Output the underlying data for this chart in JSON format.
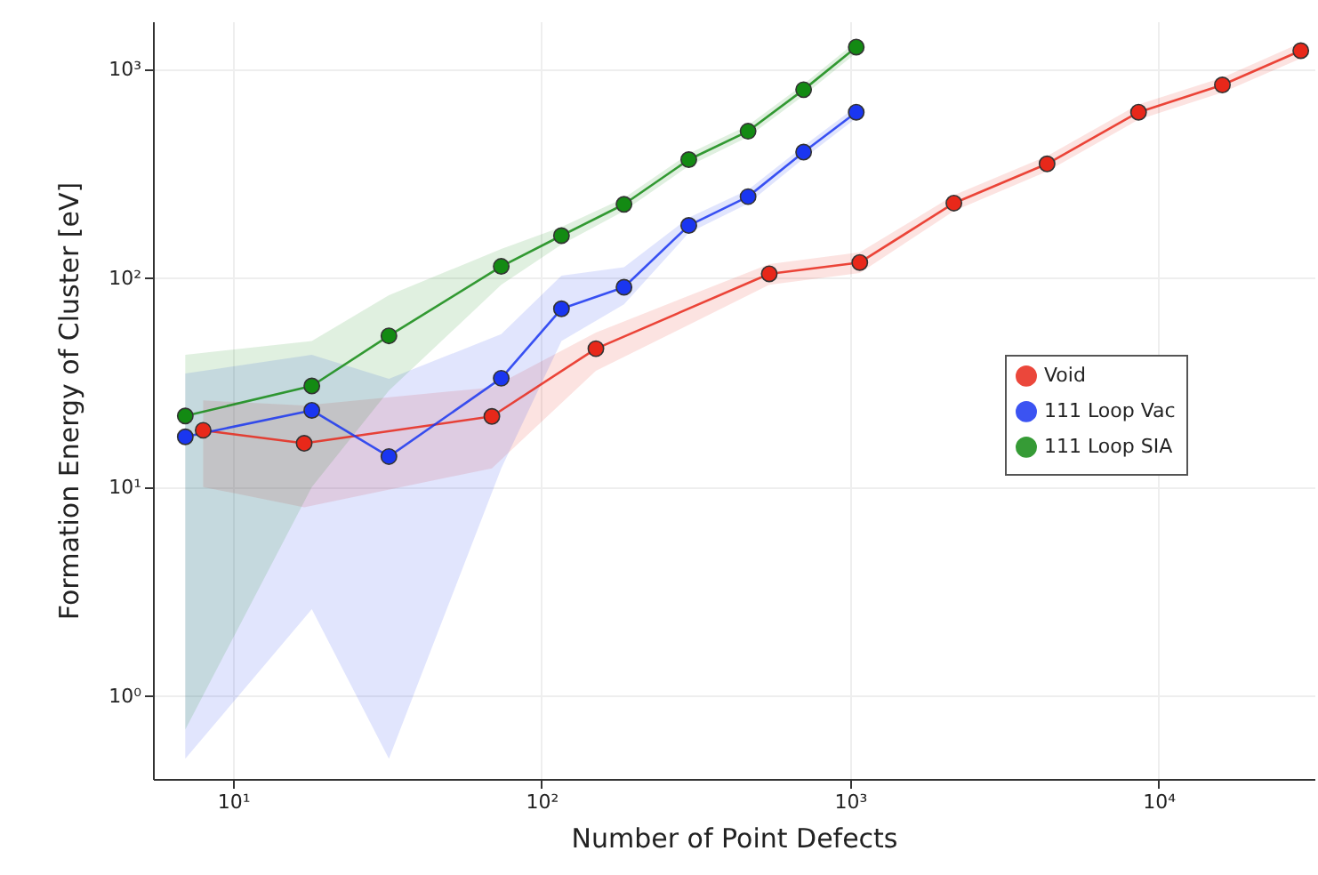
{
  "chart_data": {
    "type": "line",
    "xlabel": "Number of Point Defects",
    "ylabel": "Formation Energy of Cluster [eV]",
    "log": "xy",
    "grid": true,
    "legend": "right",
    "marker": "circle",
    "line_style": "solid",
    "xlim": [
      5.5,
      32000
    ],
    "ylim": [
      0.4,
      1700
    ],
    "xticks": [
      {
        "value": 10,
        "label": "10¹"
      },
      {
        "value": 100,
        "label": "10²"
      },
      {
        "value": 1000,
        "label": "10³"
      },
      {
        "value": 10000,
        "label": "10⁴"
      }
    ],
    "yticks": [
      {
        "value": 1,
        "label": "10⁰"
      },
      {
        "value": 10,
        "label": "10¹"
      },
      {
        "value": 100,
        "label": "10²"
      },
      {
        "value": 1000,
        "label": "10³"
      }
    ],
    "series": [
      {
        "name": "Void",
        "color": "#e8281a",
        "x": [
          8,
          17,
          69,
          150,
          547,
          1075,
          2170,
          4350,
          8610,
          16100,
          28900
        ],
        "values": [
          18.7,
          16.2,
          21.8,
          46,
          105,
          119,
          229,
          353,
          624,
          843,
          1230
        ],
        "lower": [
          10,
          8,
          12.3,
          36,
          93,
          106,
          210,
          325,
          575,
          775,
          1130
        ],
        "upper": [
          26,
          24.6,
          30,
          55,
          117,
          133,
          250,
          385,
          680,
          915,
          1340
        ]
      },
      {
        "name": "111 Loop Vac",
        "color": "#1a36f0",
        "x": [
          7,
          18,
          32,
          74,
          116,
          185,
          300,
          467,
          707,
          1047
        ],
        "values": [
          17.4,
          23.3,
          14,
          33.2,
          71.4,
          90.6,
          179,
          246,
          402,
          624
        ],
        "lower": [
          0.5,
          2.6,
          0.5,
          12.3,
          50,
          75,
          165,
          228,
          375,
          585
        ],
        "upper": [
          35,
          43,
          33,
          54,
          103,
          113,
          195,
          265,
          430,
          665
        ]
      },
      {
        "name": "111 Loop SIA",
        "color": "#138a13",
        "x": [
          7,
          18,
          32,
          74,
          116,
          185,
          300,
          467,
          707,
          1047
        ],
        "values": [
          21.9,
          30.5,
          53,
          114,
          160,
          226,
          370,
          506,
          800,
          1280
        ],
        "lower": [
          0.69,
          10,
          29,
          93,
          145,
          210,
          345,
          475,
          750,
          1200
        ],
        "upper": [
          43,
          50,
          83,
          138,
          176,
          242,
          395,
          540,
          850,
          1360
        ]
      }
    ]
  }
}
